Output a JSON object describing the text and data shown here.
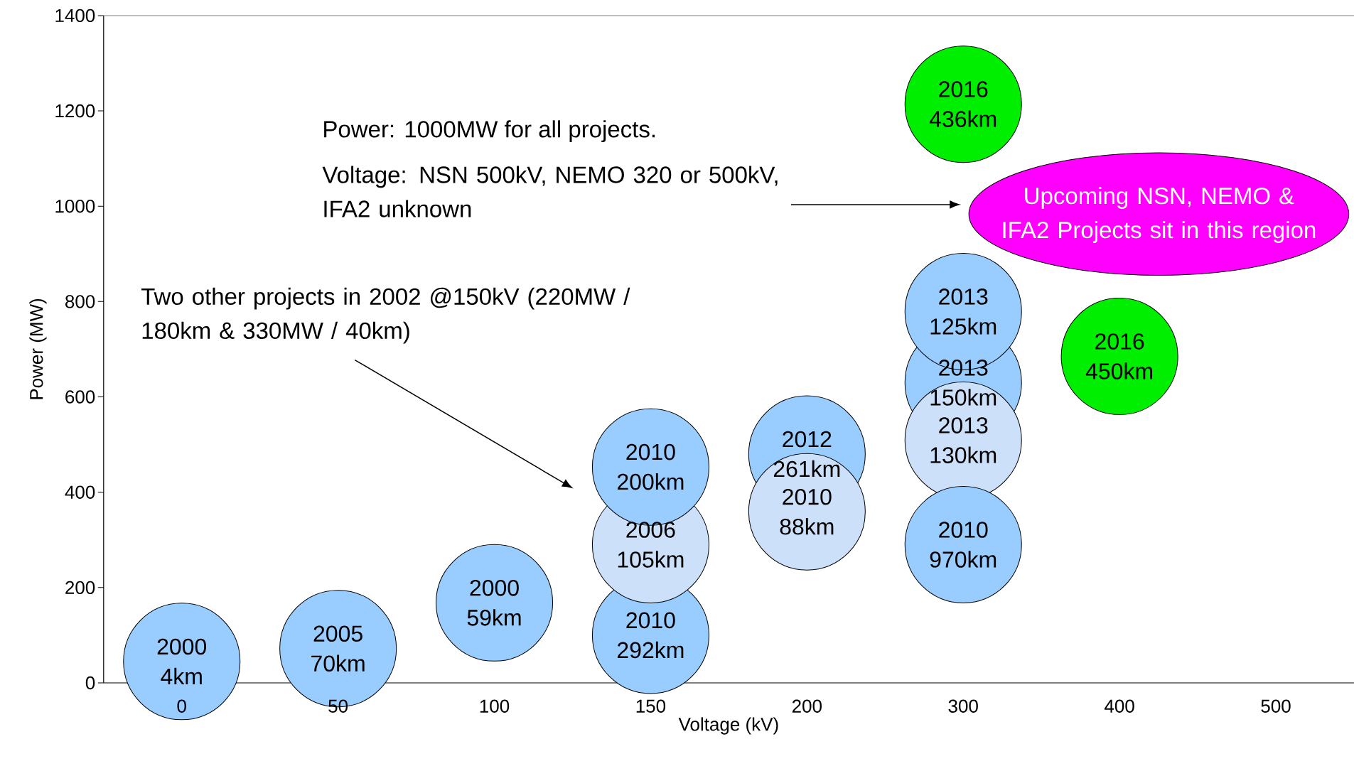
{
  "chart_data": {
    "type": "bubble",
    "xlabel": "Voltage (kV)",
    "ylabel": "Power (MW)",
    "categories": [
      "0",
      "50",
      "100",
      "150",
      "200",
      "300",
      "400",
      "500"
    ],
    "series": [
      {
        "x": [
          "0",
          "50",
          "100",
          "150",
          "150",
          "150",
          "200",
          "200",
          "300",
          "300",
          "300",
          "300",
          "400",
          "300"
        ],
        "values": [
          45,
          72,
          168,
          100,
          290,
          453,
          480,
          359,
          630,
          509,
          779,
          290,
          685,
          1214
        ],
        "sizes": [
          1,
          1,
          1,
          1,
          1,
          1,
          1,
          1,
          1,
          1,
          1,
          1,
          1,
          1
        ],
        "colors": [
          "#99ccff",
          "#99ccff",
          "#99ccff",
          "#99ccff",
          "#cce0fa",
          "#99ccff",
          "#99ccff",
          "#cce0fa",
          "#99ccff",
          "#cce0fa",
          "#99ccff",
          "#99ccff",
          "#00ee00",
          "#00ee00"
        ]
      }
    ],
    "ylim": [
      0,
      1400
    ],
    "yticks": [
      0,
      200,
      400,
      600,
      800,
      1000,
      1200,
      1400
    ],
    "annotations": [
      "Power: 1000MW for all projects.",
      "Voltage: NSN 500kV, NEMO 320 or 500kV, IFA2 unknown",
      "Two other projects in 2002 @150kV (220MW / 180km & 330MW / 40km)",
      "Upcoming NSN, NEMO & IFA2 Projects sit in this region",
      {
        "text": "2000 4km",
        "x": "0",
        "y": 45
      },
      {
        "text": "2005 70km",
        "x": "50",
        "y": 72
      },
      {
        "text": "2000 59km",
        "x": "100",
        "y": 168
      },
      {
        "text": "2010 292km",
        "x": "150",
        "y": 100
      },
      {
        "text": "2006 105km",
        "x": "150",
        "y": 290
      },
      {
        "text": "2010 200km",
        "x": "150",
        "y": 453
      },
      {
        "text": "2012 261km",
        "x": "200",
        "y": 480
      },
      {
        "text": "2010 88km",
        "x": "200",
        "y": 359
      },
      {
        "text": "2013 150km",
        "x": "300",
        "y": 630
      },
      {
        "text": "2013 130km",
        "x": "300",
        "y": 509
      },
      {
        "text": "2013 125km",
        "x": "300",
        "y": 779
      },
      {
        "text": "2010 970km",
        "x": "300",
        "y": 290
      },
      {
        "text": "2016 450km",
        "x": "400",
        "y": 685
      },
      {
        "text": "2016 436km",
        "x": "300",
        "y": 1214
      }
    ]
  }
}
